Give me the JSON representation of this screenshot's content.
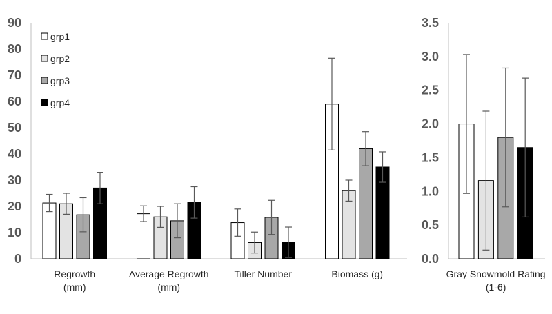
{
  "chart_data": [
    {
      "type": "bar",
      "title": "",
      "xlabel": "",
      "ylabel": "",
      "ylim": [
        0,
        90
      ],
      "yticks": [
        "0",
        "10",
        "20",
        "30",
        "40",
        "50",
        "60",
        "70",
        "80",
        "90"
      ],
      "grid": false,
      "legend": "top-left",
      "categories": [
        [
          "Regrowth",
          "(mm)"
        ],
        [
          "Average Regrowth",
          "(mm)"
        ],
        [
          "Tiller Number"
        ],
        [
          "Biomass (g)"
        ]
      ],
      "series": [
        {
          "name": "grp1",
          "color": "#ffffff",
          "values": [
            21.3,
            17.2,
            13.8,
            59.0
          ],
          "errors": [
            3.3,
            3.0,
            5.2,
            17.5
          ]
        },
        {
          "name": "grp2",
          "color": "#e3e3e3",
          "values": [
            21.0,
            16.0,
            6.2,
            26.0
          ],
          "errors": [
            4.0,
            4.0,
            4.0,
            4.0
          ]
        },
        {
          "name": "grp3",
          "color": "#a8a8a8",
          "values": [
            16.8,
            14.5,
            15.8,
            42.0
          ],
          "errors": [
            6.5,
            6.5,
            6.5,
            6.5
          ]
        },
        {
          "name": "grp4",
          "color": "#000000",
          "values": [
            27.0,
            21.5,
            6.3,
            35.0
          ],
          "errors": [
            6.0,
            6.0,
            5.8,
            5.8
          ]
        }
      ]
    },
    {
      "type": "bar",
      "title": "",
      "xlabel": "",
      "ylabel": "",
      "ylim": [
        0,
        3.5
      ],
      "yticks": [
        "0.0",
        "0.5",
        "1.0",
        "1.5",
        "2.0",
        "2.5",
        "3.0",
        "3.5"
      ],
      "grid": false,
      "categories": [
        [
          "Gray Snowmold Rating",
          "(1-6)"
        ]
      ],
      "series": [
        {
          "name": "grp1",
          "color": "#ffffff",
          "values": [
            2.0
          ],
          "errors": [
            1.03
          ]
        },
        {
          "name": "grp2",
          "color": "#e3e3e3",
          "values": [
            1.16
          ],
          "errors": [
            1.03
          ]
        },
        {
          "name": "grp3",
          "color": "#a8a8a8",
          "values": [
            1.8
          ],
          "errors": [
            1.03
          ]
        },
        {
          "name": "grp4",
          "color": "#000000",
          "values": [
            1.65
          ],
          "errors": [
            1.03
          ]
        }
      ]
    }
  ]
}
